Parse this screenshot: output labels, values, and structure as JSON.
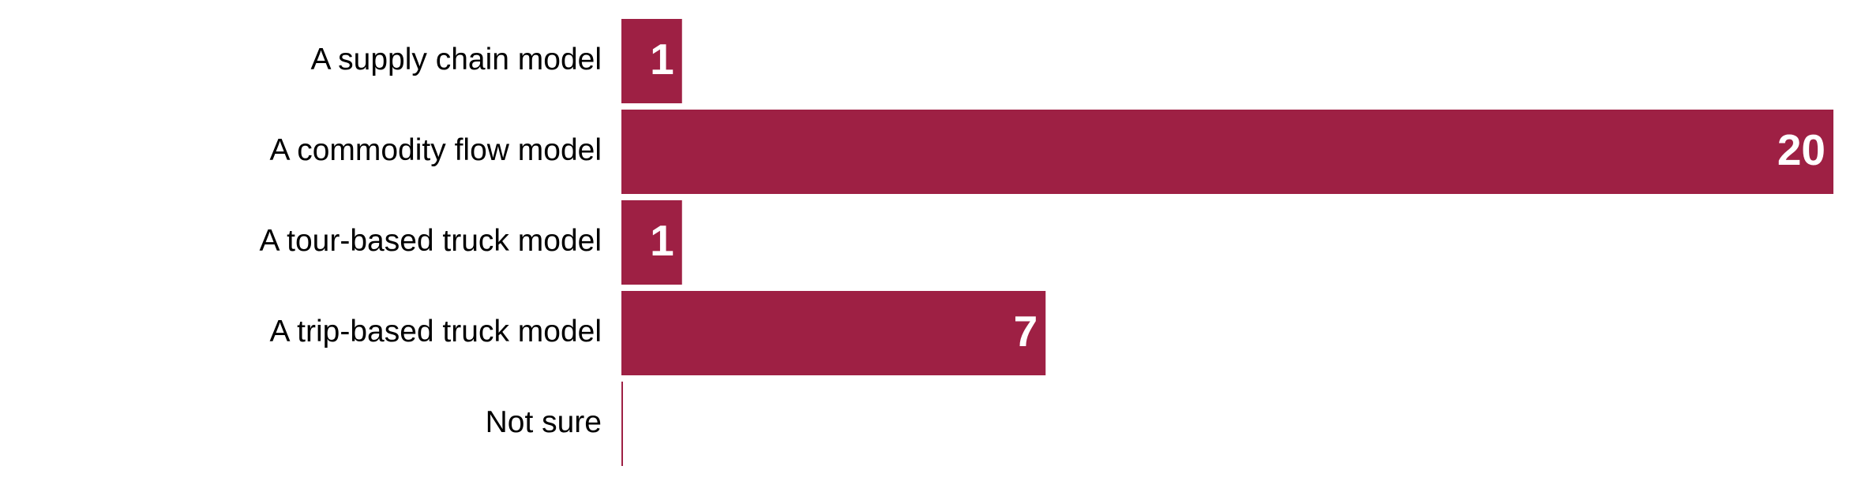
{
  "chart_data": {
    "type": "bar",
    "orientation": "horizontal",
    "categories": [
      "A supply chain model",
      "A commodity flow model",
      "A tour-based truck model",
      "A trip-based truck model",
      "Not sure"
    ],
    "values": [
      1,
      20,
      1,
      7,
      0
    ],
    "data_labels": [
      "1",
      "20",
      "1",
      "7",
      ""
    ],
    "xlim": [
      0,
      20
    ],
    "grid": false,
    "legend": "none",
    "bar_color": "#9e2044",
    "label_color": "#ffffff"
  }
}
